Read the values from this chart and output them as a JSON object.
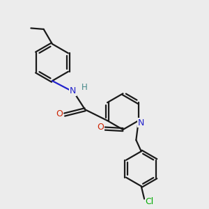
{
  "bg_color": "#ececec",
  "bond_color": "#1a1a1a",
  "N_color": "#2222cc",
  "O_color": "#cc2200",
  "Cl_color": "#00aa00",
  "H_color": "#448888",
  "line_width": 1.6,
  "figsize": [
    3.0,
    3.0
  ],
  "dpi": 100,
  "xlim": [
    0,
    10
  ],
  "ylim": [
    0,
    10
  ]
}
